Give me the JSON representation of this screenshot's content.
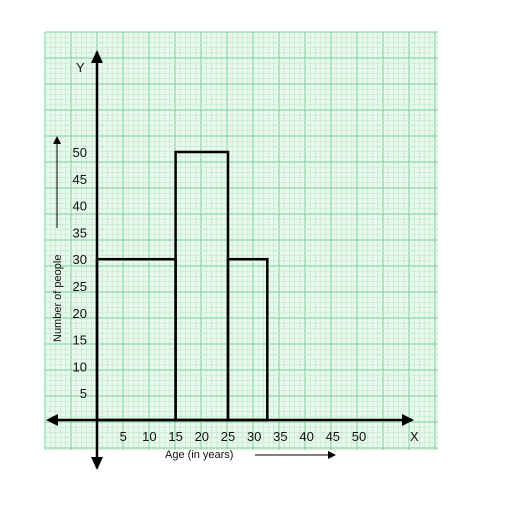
{
  "chart_data": {
    "type": "bar",
    "title": "",
    "xlabel": "Age (in years)",
    "ylabel": "Number of people",
    "x_axis_letter": "X",
    "y_axis_letter": "Y",
    "x_ticks": [
      "5",
      "10",
      "15",
      "20",
      "25",
      "30",
      "35",
      "40",
      "45",
      "50"
    ],
    "y_ticks": [
      "5",
      "10",
      "15",
      "20",
      "25",
      "30",
      "35",
      "40",
      "45",
      "50"
    ],
    "bars": [
      {
        "x_start": 0,
        "x_end": 15,
        "value": 30
      },
      {
        "x_start": 15,
        "x_end": 25,
        "value": 50
      },
      {
        "x_start": 25,
        "x_end": 32.5,
        "value": 30
      }
    ],
    "grid": true,
    "colors": {
      "grid_minor": "#bfe6cc",
      "grid_major": "#7ccf97",
      "background": "#e8f8ec",
      "bars": "#000000"
    }
  }
}
